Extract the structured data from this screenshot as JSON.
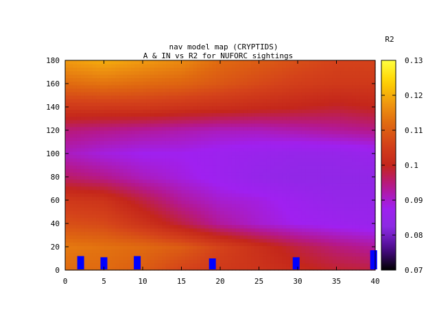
{
  "chart_data": {
    "type": "heatmap",
    "title_line1": "nav model map (CRYPTIDS)",
    "title_line2": "A & IN vs R2 for NUFORC sightings",
    "colorbar_label": "R2",
    "xlabel": "",
    "ylabel": "",
    "xlim": [
      0,
      40
    ],
    "ylim": [
      0,
      180
    ],
    "zlim": [
      0.07,
      0.13
    ],
    "x_ticks": [
      0,
      5,
      10,
      15,
      20,
      25,
      30,
      35,
      40
    ],
    "y_ticks": [
      0,
      20,
      40,
      60,
      80,
      100,
      120,
      140,
      160,
      180
    ],
    "z_ticks": [
      "0.07",
      "0.08",
      "0.09",
      "0.1",
      "0.11",
      "0.12",
      "0.13"
    ],
    "palette": [
      "#000000",
      "#4a0b8a",
      "#8a2be2",
      "#a020f0",
      "#b5188c",
      "#c4261b",
      "#d4421a",
      "#e06a10",
      "#f09a10",
      "#ffd400",
      "#ffff40"
    ],
    "grid": false,
    "x": [
      0,
      5,
      10,
      15,
      20,
      25,
      30,
      35,
      40
    ],
    "y": [
      0,
      20,
      40,
      60,
      80,
      100,
      120,
      140,
      160,
      180
    ],
    "z": [
      [
        0.112,
        0.112,
        0.11,
        0.106,
        0.104,
        0.103,
        0.101,
        0.099,
        0.098
      ],
      [
        0.114,
        0.113,
        0.112,
        0.11,
        0.106,
        0.102,
        0.098,
        0.095,
        0.093
      ],
      [
        0.108,
        0.107,
        0.103,
        0.098,
        0.093,
        0.09,
        0.088,
        0.087,
        0.086
      ],
      [
        0.104,
        0.103,
        0.098,
        0.093,
        0.09,
        0.089,
        0.087,
        0.085,
        0.085
      ],
      [
        0.096,
        0.094,
        0.091,
        0.089,
        0.087,
        0.085,
        0.084,
        0.084,
        0.084
      ],
      [
        0.091,
        0.089,
        0.088,
        0.088,
        0.087,
        0.086,
        0.085,
        0.085,
        0.086
      ],
      [
        0.095,
        0.094,
        0.093,
        0.092,
        0.091,
        0.091,
        0.092,
        0.093,
        0.094
      ],
      [
        0.104,
        0.104,
        0.104,
        0.103,
        0.102,
        0.101,
        0.1,
        0.099,
        0.1
      ],
      [
        0.112,
        0.113,
        0.112,
        0.111,
        0.109,
        0.107,
        0.105,
        0.104,
        0.104
      ],
      [
        0.118,
        0.12,
        0.118,
        0.116,
        0.112,
        0.11,
        0.108,
        0.106,
        0.106
      ]
    ],
    "markers": {
      "color": "#0000ff",
      "points": [
        {
          "x": 2,
          "y": 6
        },
        {
          "x": 5,
          "y": 5
        },
        {
          "x": 9.3,
          "y": 6
        },
        {
          "x": 19,
          "y": 4
        },
        {
          "x": 29.8,
          "y": 5
        },
        {
          "x": 39.8,
          "y": 11
        }
      ]
    }
  }
}
